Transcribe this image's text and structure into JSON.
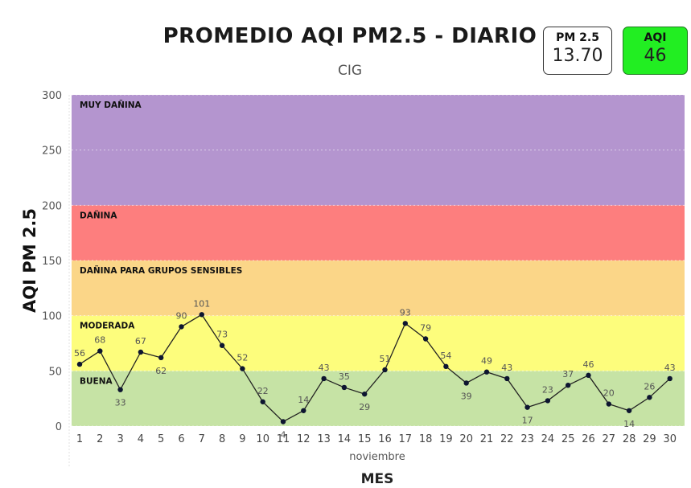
{
  "header": {
    "title": "PROMEDIO AQI PM2.5 - DIARIO",
    "subtitle": "CIG"
  },
  "cards": {
    "pm25": {
      "label": "PM 2.5",
      "value": "13.70"
    },
    "aqi": {
      "label": "AQI",
      "value": "46",
      "color": "#22ee22"
    }
  },
  "chart_data": {
    "type": "line",
    "ylabel": "AQI PM 2.5",
    "xlabel": "MES",
    "x_sublabel": "noviembre",
    "ylim": [
      0,
      300
    ],
    "yticks": [
      0,
      50,
      100,
      150,
      200,
      250,
      300
    ],
    "grid": true,
    "categories": [
      "1",
      "2",
      "3",
      "4",
      "5",
      "6",
      "7",
      "8",
      "9",
      "10",
      "11",
      "12",
      "13",
      "14",
      "15",
      "16",
      "17",
      "18",
      "19",
      "20",
      "21",
      "22",
      "23",
      "24",
      "25",
      "26",
      "27",
      "28",
      "29",
      "30"
    ],
    "values": [
      56,
      68,
      33,
      67,
      62,
      90,
      101,
      73,
      52,
      22,
      4,
      14,
      43,
      35,
      29,
      51,
      93,
      79,
      54,
      39,
      49,
      43,
      17,
      23,
      37,
      46,
      20,
      14,
      26,
      43
    ],
    "bands": [
      {
        "label": "BUENA",
        "from": 0,
        "to": 50,
        "color": "#c6e3a5"
      },
      {
        "label": "MODERADA",
        "from": 50,
        "to": 100,
        "color": "#fdfd7c"
      },
      {
        "label": "DAÑINA PARA GRUPOS SENSIBLES",
        "from": 100,
        "to": 150,
        "color": "#fbd688"
      },
      {
        "label": "DAÑINA",
        "from": 150,
        "to": 200,
        "color": "#fd7e7e"
      },
      {
        "label": "MUY DAÑINA",
        "from": 200,
        "to": 300,
        "color": "#b495cf"
      }
    ],
    "line_color": "#222222"
  }
}
